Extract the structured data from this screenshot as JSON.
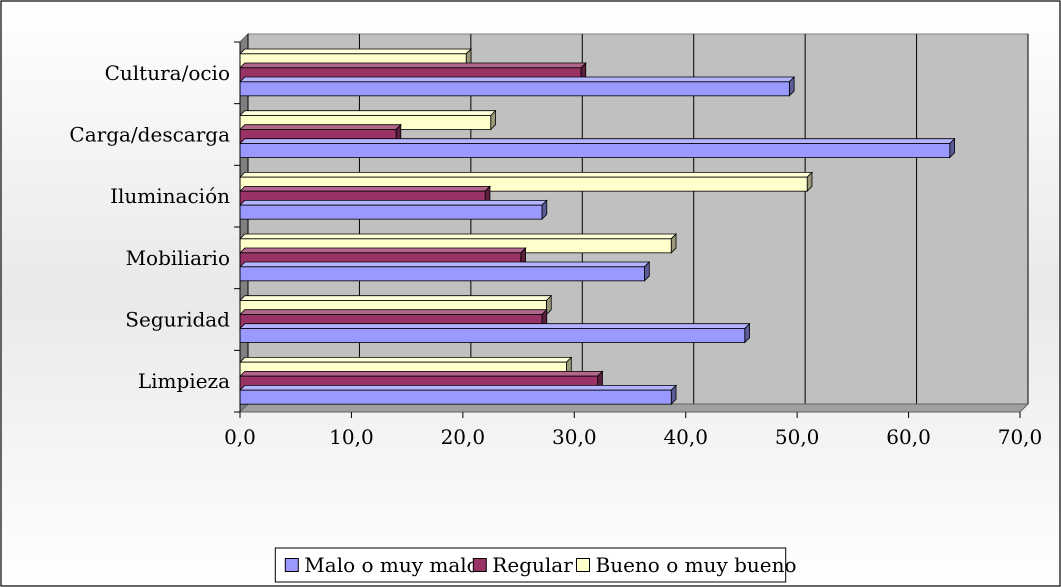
{
  "chart_data": {
    "type": "bar",
    "orientation": "horizontal",
    "style": "3d",
    "categories": [
      "Limpieza",
      "Seguridad",
      "Mobiliario",
      "Iluminación",
      "Carga/descarga",
      "Cultura/ocio"
    ],
    "series": [
      {
        "name": "Malo o muy malo",
        "color": "#9999ff",
        "values": [
          38.7,
          45.3,
          36.3,
          27.1,
          63.7,
          49.3
        ]
      },
      {
        "name": "Regular",
        "color": "#993366",
        "values": [
          32.1,
          27.1,
          25.2,
          22.0,
          14.0,
          30.6
        ]
      },
      {
        "name": "Bueno o muy bueno",
        "color": "#ffffcc",
        "values": [
          29.3,
          27.5,
          38.7,
          50.9,
          22.5,
          20.3
        ]
      }
    ],
    "xlim": [
      0,
      70
    ],
    "xticks": [
      "0,0",
      "10,0",
      "20,0",
      "30,0",
      "40,0",
      "50,0",
      "60,0",
      "70,0"
    ],
    "grid": true,
    "legend": "bottom",
    "plot_background": "#c0c0c0"
  }
}
